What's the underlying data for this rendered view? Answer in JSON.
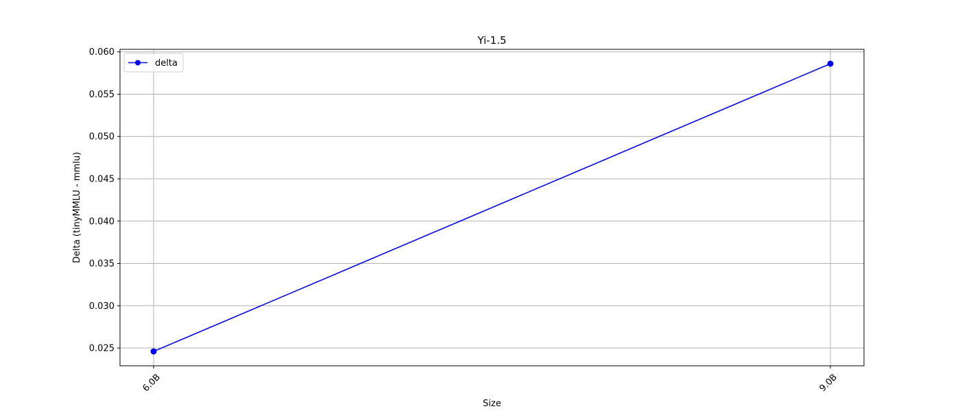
{
  "chart_data": {
    "type": "line",
    "title": "Yi-1.5",
    "xlabel": "Size",
    "ylabel": "Delta (tinyMMLU - mmlu)",
    "categories": [
      "6.0B",
      "9.0B"
    ],
    "series": [
      {
        "name": "delta",
        "values": [
          0.0246,
          0.0586
        ],
        "color": "#0000ff"
      }
    ],
    "ylim": [
      0.0229,
      0.0603
    ],
    "yticks": [
      0.025,
      0.03,
      0.035,
      0.04,
      0.045,
      0.05,
      0.055,
      0.06
    ],
    "ytick_labels": [
      "0.025",
      "0.030",
      "0.035",
      "0.040",
      "0.045",
      "0.050",
      "0.055",
      "0.060"
    ],
    "grid": true,
    "legend_position": "top-left",
    "x_tick_rotation": "45deg"
  }
}
